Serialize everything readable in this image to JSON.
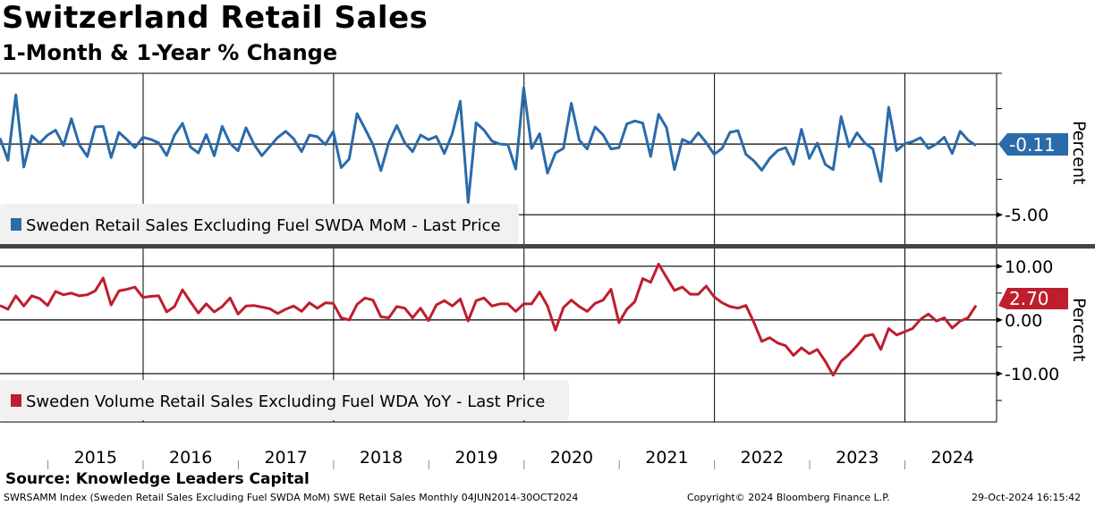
{
  "header": {
    "title": "Switzerland Retail Sales",
    "subtitle": "1-Month & 1-Year % Change"
  },
  "footer": {
    "source": "Source: Knowledge Leaders Capital",
    "description": "SWRSAMM Index (Sweden Retail Sales Excluding Fuel SWDA MoM) SWE Retail Sales  Monthly 04JUN2014-30OCT2024",
    "copyright": "Copyright© 2024 Bloomberg Finance L.P.",
    "timestamp": "29-Oct-2024 16:15:42"
  },
  "chart_data": [
    {
      "type": "line",
      "title": "Sweden Retail Sales Excluding Fuel SWDA MoM",
      "legend": "Sweden Retail Sales Excluding Fuel SWDA MoM - Last Price",
      "ylabel": "Percent",
      "ylim": [
        -7.2,
        5
      ],
      "yticks": [
        {
          "v": -5,
          "label": "-5.00"
        }
      ],
      "minor_ticks": [
        5,
        2.5,
        0,
        -2.5,
        -5
      ],
      "gridlines": [
        0,
        -5
      ],
      "last_value_label": "-0.11",
      "color": "#2A6BAA",
      "x_start": "2014-07",
      "frequency": "monthly",
      "values": [
        0.42,
        -1.15,
        3.48,
        -1.63,
        0.58,
        0.06,
        0.63,
        0.98,
        -0.1,
        1.79,
        -0.06,
        -0.88,
        1.21,
        1.25,
        -0.96,
        0.83,
        0.31,
        -0.25,
        0.48,
        0.33,
        0.08,
        -0.81,
        0.63,
        1.46,
        -0.21,
        -0.63,
        0.67,
        -0.83,
        1.25,
        0.04,
        -0.48,
        1.15,
        0,
        -0.83,
        -0.17,
        0.46,
        0.9,
        0.38,
        -0.54,
        0.63,
        0.52,
        -0.04,
        0.9,
        -1.67,
        -1.06,
        2.15,
        1.08,
        -0.04,
        -1.88,
        0.1,
        1.31,
        0.1,
        -0.54,
        0.63,
        0.31,
        0.54,
        -0.67,
        0.73,
        3.02,
        -4.13,
        1.5,
        0.98,
        0.21,
        0,
        -0.04,
        -1.77,
        3.98,
        -0.31,
        0.73,
        -2.06,
        -0.63,
        -0.31,
        2.88,
        0.27,
        -0.35,
        1.21,
        0.65,
        -0.35,
        -0.25,
        1.42,
        1.63,
        1.48,
        -0.88,
        2.1,
        1.15,
        -1.81,
        0.33,
        0.06,
        0.79,
        0.1,
        -0.73,
        -0.31,
        0.83,
        0.94,
        -0.73,
        -1.19,
        -1.85,
        -1.02,
        -0.46,
        -0.25,
        -1.44,
        1.04,
        -1.02,
        0.06,
        -1.44,
        -1.81,
        1.94,
        -0.19,
        0.79,
        0.06,
        -0.35,
        -2.65,
        2.6,
        -0.46,
        0.02,
        0.17,
        0.44,
        -0.31,
        0,
        0.48,
        -0.67,
        0.9,
        0.27,
        -0.11
      ]
    },
    {
      "type": "line",
      "title": "Sweden Volume Retail Sales Excluding Fuel WDA YoY",
      "legend": "Sweden Volume Retail Sales Excluding Fuel WDA YoY - Last Price",
      "ylabel": "Percent",
      "ylim": [
        -19,
        13.3
      ],
      "yticks": [
        {
          "v": 10,
          "label": "10.00"
        },
        {
          "v": 0,
          "label": "0.00"
        },
        {
          "v": -10,
          "label": "-10.00"
        }
      ],
      "minor_ticks": [
        5,
        -5,
        -15
      ],
      "gridlines": [
        10,
        0,
        -10
      ],
      "last_value_label": "2.70",
      "color": "#BE1E2D",
      "x_start": "2014-07",
      "frequency": "monthly",
      "values": [
        2.7,
        2.0,
        4.5,
        2.6,
        4.5,
        4.0,
        2.7,
        5.3,
        4.7,
        5.0,
        4.5,
        4.7,
        5.4,
        7.8,
        2.8,
        5.4,
        5.7,
        6.1,
        4.2,
        4.4,
        4.5,
        1.5,
        2.5,
        5.6,
        3.4,
        1.3,
        3.0,
        1.5,
        2.5,
        4.1,
        1.1,
        2.6,
        2.7,
        2.4,
        2.1,
        1.2,
        2.0,
        2.6,
        1.6,
        3.2,
        2.2,
        3.2,
        3.1,
        0.4,
        0,
        2.9,
        4.1,
        3.7,
        0.6,
        0.4,
        2.5,
        2.2,
        0.4,
        2.2,
        -0.1,
        2.8,
        3.6,
        2.6,
        3.9,
        -0.2,
        3.6,
        4.1,
        2.6,
        3.0,
        3.0,
        1.6,
        3.0,
        3.0,
        5.2,
        2.6,
        -1.9,
        2.3,
        3.7,
        2.5,
        1.6,
        3.1,
        3.7,
        5.7,
        -0.5,
        2.0,
        3.4,
        7.7,
        7.0,
        10.4,
        7.9,
        5.5,
        6.1,
        4.8,
        4.8,
        6.3,
        4.3,
        3.2,
        2.5,
        2.2,
        2.7,
        -0.4,
        -4.0,
        -3.3,
        -4.3,
        -4.8,
        -6.6,
        -5.2,
        -6.3,
        -5.5,
        -7.7,
        -10.3,
        -7.7,
        -6.4,
        -4.8,
        -3.0,
        -2.7,
        -5.5,
        -1.6,
        -2.8,
        -2.2,
        -1.6,
        0.1,
        1.1,
        -0.2,
        0.4,
        -1.5,
        -0.2,
        0.4,
        2.7
      ]
    }
  ],
  "x_axis": {
    "years": [
      "2015",
      "2016",
      "2017",
      "2018",
      "2019",
      "2020",
      "2021",
      "2022",
      "2023",
      "2024"
    ]
  }
}
